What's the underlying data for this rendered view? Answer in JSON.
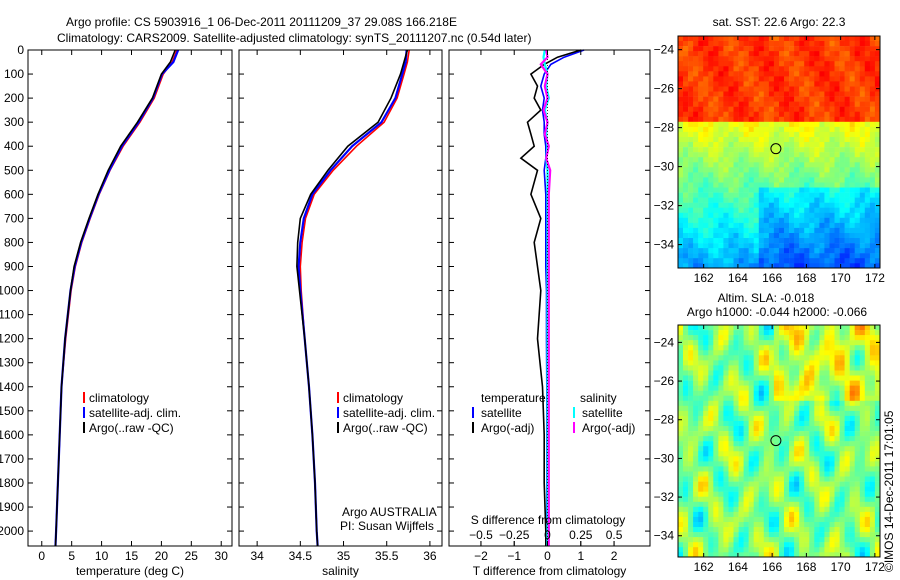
{
  "title_line1": "Argo profile: CS 5903916_1 06-Dec-2011 20111209_37 29.08S 166.218E",
  "title_line2": "Climatology: CARS2009. Satellite-adjusted climatology: synTS_20111207.nc (0.54d later)",
  "credit": "©IMOS 14-Dec-2011 17:01:05",
  "colors": {
    "climatology": "#ff0000",
    "satellite": "#0000ff",
    "argo": "#000000",
    "sal_satellite": "#00ffff",
    "sal_argo": "#ff00ff"
  },
  "chart_data": [
    {
      "type": "line",
      "id": "temperature",
      "xlabel": "temperature (deg C)",
      "ylabel": "",
      "xlim": [
        -2.3,
        31.8
      ],
      "ylim": [
        2062,
        0
      ],
      "xticks": [
        0,
        5,
        10,
        15,
        20,
        25,
        30
      ],
      "yticks": [
        0,
        100,
        200,
        300,
        400,
        500,
        600,
        700,
        800,
        900,
        1000,
        1100,
        1200,
        1300,
        1400,
        1500,
        1600,
        1700,
        1800,
        1900,
        2000
      ],
      "depth": [
        0,
        50,
        100,
        200,
        300,
        400,
        500,
        600,
        700,
        800,
        900,
        1000,
        1200,
        1400,
        1600,
        1800,
        2000,
        2060
      ],
      "series": [
        {
          "name": "climatology",
          "values": [
            22.6,
            21.8,
            20.3,
            18.8,
            16.4,
            13.6,
            11.4,
            9.6,
            8.1,
            6.7,
            5.6,
            4.9,
            4.0,
            3.3,
            3.0,
            2.7,
            2.4,
            2.3
          ]
        },
        {
          "name": "satellite-adj. clim.",
          "values": [
            22.8,
            22.0,
            20.1,
            18.6,
            16.2,
            13.4,
            11.3,
            9.5,
            8.0,
            6.6,
            5.5,
            4.8,
            3.9,
            3.3,
            3.0,
            2.7,
            2.4,
            2.3
          ]
        },
        {
          "name": "Argo(..raw -QC)",
          "values": [
            22.3,
            21.5,
            20.0,
            18.5,
            16.0,
            13.2,
            11.1,
            9.4,
            7.9,
            6.5,
            5.4,
            4.8,
            3.9,
            3.3,
            3.0,
            2.7,
            2.4,
            2.3
          ]
        }
      ],
      "legend": [
        "climatology",
        "satellite-adj. clim.",
        "Argo(..raw -QC)"
      ]
    },
    {
      "type": "line",
      "id": "salinity",
      "xlabel": "salinity",
      "xlim": [
        33.79,
        36.14
      ],
      "ylim": [
        2062,
        0
      ],
      "xticks": [
        34,
        34.5,
        35,
        35.5,
        36
      ],
      "depth": [
        0,
        50,
        100,
        200,
        300,
        400,
        500,
        600,
        700,
        800,
        900,
        1000,
        1200,
        1400,
        1600,
        1800,
        2000,
        2060
      ],
      "series": [
        {
          "name": "climatology",
          "values": [
            35.76,
            35.74,
            35.7,
            35.62,
            35.47,
            35.15,
            34.88,
            34.66,
            34.56,
            34.52,
            34.5,
            34.51,
            34.55,
            34.6,
            34.64,
            34.67,
            34.69,
            34.7
          ]
        },
        {
          "name": "satellite-adj. clim.",
          "values": [
            35.73,
            35.72,
            35.68,
            35.6,
            35.44,
            35.1,
            34.85,
            34.64,
            34.54,
            34.5,
            34.48,
            34.5,
            34.55,
            34.6,
            34.64,
            34.67,
            34.69,
            34.7
          ]
        },
        {
          "name": "Argo(..raw -QC)",
          "values": [
            35.74,
            35.7,
            35.66,
            35.55,
            35.4,
            35.05,
            34.82,
            34.62,
            34.5,
            34.47,
            34.46,
            34.49,
            34.55,
            34.6,
            34.64,
            34.67,
            34.69,
            34.7
          ]
        }
      ],
      "legend": [
        "climatology",
        "satellite-adj. clim.",
        "Argo(..raw -QC)"
      ],
      "annotation": [
        "Argo AUSTRALIA",
        "PI: Susan Wijffels"
      ]
    },
    {
      "type": "line",
      "id": "difference",
      "xlabel": "T difference from climatology",
      "xlabel_top": "S difference from climatology",
      "xlim": [
        -2.96,
        3.08
      ],
      "ylim": [
        2062,
        0
      ],
      "xticks": [
        -2,
        -1,
        0,
        1,
        2
      ],
      "xticks_S": [
        -0.5,
        -0.25,
        0,
        0.25,
        0.5
      ],
      "depth": [
        0,
        30,
        60,
        100,
        150,
        200,
        250,
        300,
        350,
        400,
        450,
        500,
        600,
        700,
        800,
        900,
        1000,
        1200,
        1400,
        1600,
        1800,
        2000,
        2060
      ],
      "series": [
        {
          "name": "T satellite",
          "axis": "T",
          "values": [
            1.1,
            0.5,
            0.1,
            -0.1,
            -0.2,
            -0.1,
            -0.15,
            -0.1,
            -0.1,
            -0.05,
            -0.05,
            -0.1,
            -0.05,
            -0.05,
            -0.05,
            -0.05,
            -0.03,
            -0.03,
            -0.02,
            -0.02,
            -0.02,
            -0.02,
            -0.02
          ]
        },
        {
          "name": "T Argo(-adj)",
          "axis": "T",
          "values": [
            1.0,
            0.3,
            -0.1,
            -0.5,
            -0.3,
            -0.4,
            -0.2,
            -0.6,
            -0.5,
            -0.4,
            -0.8,
            -0.3,
            -0.5,
            -0.2,
            -0.4,
            -0.3,
            -0.2,
            -0.3,
            -0.15,
            -0.1,
            -0.1,
            -0.05,
            -0.05
          ]
        },
        {
          "name": "S satellite",
          "axis": "S",
          "values": [
            -0.02,
            -0.03,
            -0.02,
            0.0,
            -0.01,
            0.01,
            -0.02,
            0.0,
            -0.01,
            0.0,
            -0.01,
            0.0,
            0.0,
            0.0,
            0.0,
            0.0,
            0.0,
            0.0,
            0.0,
            0.0,
            0.0,
            0.0,
            0.0
          ]
        },
        {
          "name": "S Argo(-adj)",
          "axis": "S",
          "values": [
            -0.01,
            0.0,
            -0.05,
            0.0,
            -0.02,
            0.0,
            -0.03,
            0.0,
            -0.02,
            0.01,
            -0.01,
            0.02,
            0.01,
            0.01,
            0.01,
            0.01,
            0.01,
            0.01,
            0.01,
            0.01,
            0.01,
            0.01,
            0.01
          ]
        }
      ],
      "legend_T_title": "temperature",
      "legend_S_title": "salinity",
      "legend_T": [
        "satellite",
        "Argo(-adj)"
      ],
      "legend_S": [
        "satellite",
        "Argo(-adj)"
      ]
    },
    {
      "type": "heatmap",
      "id": "sst-map",
      "title": "sat. SST: 22.6 Argo: 22.3",
      "xlim": [
        160.5,
        172.3
      ],
      "ylim": [
        -23.3,
        -35.2
      ],
      "xticks": [
        162,
        164,
        166,
        168,
        170,
        172
      ],
      "yticks": [
        -24,
        -26,
        -28,
        -30,
        -32,
        -34
      ],
      "profile_location": [
        166.218,
        -29.08
      ]
    },
    {
      "type": "heatmap",
      "id": "sla-map",
      "title": "Altim. SLA: -0.018",
      "subtitle": "Argo h1000: -0.044 h2000: -0.066",
      "xlim": [
        160.5,
        172.3
      ],
      "ylim": [
        -23.1,
        -35.1
      ],
      "xticks": [
        162,
        164,
        166,
        168,
        170,
        172
      ],
      "yticks": [
        -24,
        -26,
        -28,
        -30,
        -32,
        -34
      ],
      "profile_location": [
        166.218,
        -29.08
      ]
    }
  ]
}
